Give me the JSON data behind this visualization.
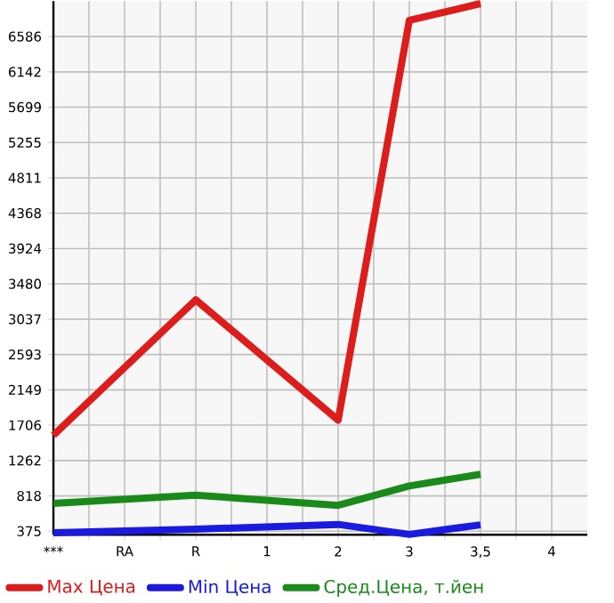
{
  "chart_data": {
    "type": "line",
    "categories": [
      "***",
      "RA",
      "R",
      "1",
      "2",
      "3",
      "3,5",
      "4"
    ],
    "series": [
      {
        "name": "Max Цена",
        "color": "#dd1c1c",
        "values": [
          1580,
          null,
          3280,
          null,
          1770,
          6790,
          7000,
          null
        ]
      },
      {
        "name": "Min Цена",
        "color": "#1a1ae0",
        "values": [
          355,
          null,
          400,
          null,
          460,
          335,
          455,
          null
        ]
      },
      {
        "name": "Сред.Цена, т.йен",
        "color": "#1a8a1a",
        "values": [
          725,
          null,
          827,
          null,
          700,
          943,
          1090,
          null
        ]
      }
    ],
    "ylim": [
      330,
      7030
    ],
    "yticks": [
      375,
      818,
      1262,
      1706,
      2149,
      2593,
      3037,
      3480,
      3924,
      4368,
      4811,
      5255,
      5699,
      6142,
      6586
    ],
    "grid": true,
    "legend": "bottom",
    "marker": "none",
    "line_style": "solid"
  }
}
